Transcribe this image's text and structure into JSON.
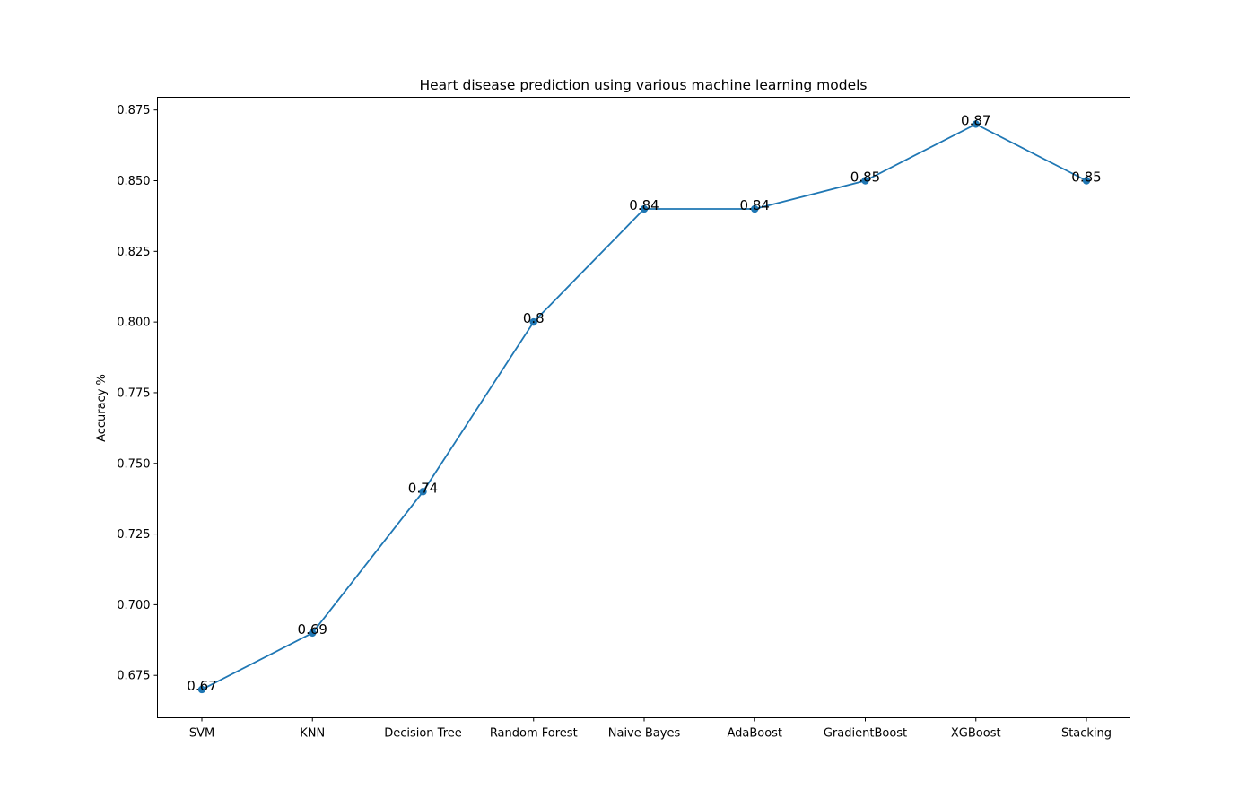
{
  "chart_data": {
    "type": "line",
    "title": "Heart disease prediction using various machine learning models",
    "xlabel": "",
    "ylabel": "Accuracy %",
    "categories": [
      "SVM",
      "KNN",
      "Decision Tree",
      "Random Forest",
      "Naive Bayes",
      "AdaBoost",
      "GradientBoost",
      "XGBoost",
      "Stacking"
    ],
    "values": [
      0.67,
      0.69,
      0.74,
      0.8,
      0.84,
      0.84,
      0.85,
      0.87,
      0.85
    ],
    "data_labels": [
      "0.67",
      "0.69",
      "0.74",
      "0.8",
      "0.84",
      "0.84",
      "0.85",
      "0.87",
      "0.85"
    ],
    "ylim": [
      0.66,
      0.8795
    ],
    "yticks": [
      0.675,
      0.7,
      0.725,
      0.75,
      0.775,
      0.8,
      0.825,
      0.85,
      0.875
    ],
    "ytick_labels": [
      "0.675",
      "0.700",
      "0.725",
      "0.750",
      "0.775",
      "0.800",
      "0.825",
      "0.850",
      "0.875"
    ],
    "grid": false,
    "legend": "none",
    "line_color": "#1f77b4"
  }
}
